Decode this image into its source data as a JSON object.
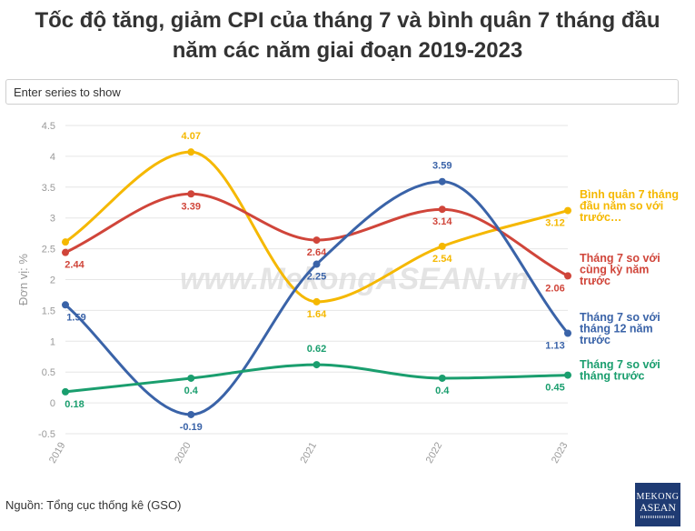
{
  "title_line1": "Tốc độ tăng, giảm CPI của tháng 7 và bình quân 7 tháng đầu",
  "title_line2": "năm các năm giai đoạn 2019-2023",
  "search": {
    "placeholder": "Enter series to show"
  },
  "source": "Nguồn: Tổng cục thống kê (GSO)",
  "watermark": "www.MekongASEAN.vn",
  "logo": {
    "line1": "MEKONG",
    "line2": "ASEAN"
  },
  "chart_data": {
    "type": "line",
    "x": [
      "2019",
      "2020",
      "2021",
      "2022",
      "2023"
    ],
    "ylabel": "Đơn vị: %",
    "ylim": [
      -0.5,
      4.5
    ],
    "yticks": [
      "-0.5",
      "0",
      "0.5",
      "1",
      "1.5",
      "2",
      "2.5",
      "3",
      "3.5",
      "4",
      "4.5"
    ],
    "grid": true,
    "series": [
      {
        "name": "Bình quân 7 tháng đầu năm so với trước...",
        "color": "#f5b800",
        "values": [
          2.61,
          4.07,
          1.64,
          2.54,
          3.12
        ],
        "labels": [
          "",
          "4.07",
          "1.64",
          "2.54",
          "3.12"
        ],
        "legend_lines": [
          "Bình quân 7 tháng",
          "đầu năm so với",
          "trước…"
        ]
      },
      {
        "name": "Tháng 7 so với cùng kỳ năm trước",
        "color": "#d0453a",
        "values": [
          2.44,
          3.39,
          2.64,
          3.14,
          2.06
        ],
        "labels": [
          "2.44",
          "3.39",
          "2.64",
          "3.14",
          "2.06"
        ],
        "legend_lines": [
          "Tháng 7 so với",
          "cùng kỳ năm",
          "trước"
        ]
      },
      {
        "name": "Tháng 7 so với tháng 12 năm trước",
        "color": "#3a63a8",
        "values": [
          1.59,
          -0.19,
          2.25,
          3.59,
          1.13
        ],
        "labels": [
          "1.59",
          "-0.19",
          "2.25",
          "3.59",
          "1.13"
        ],
        "legend_lines": [
          "Tháng 7 so với",
          "tháng 12 năm",
          "trước"
        ]
      },
      {
        "name": "Tháng 7 so với tháng trước",
        "color": "#1a9e6e",
        "values": [
          0.18,
          0.4,
          0.62,
          0.4,
          0.45
        ],
        "labels": [
          "0.18",
          "0.4",
          "0.62",
          "0.4",
          "0.45"
        ],
        "legend_lines": [
          "Tháng 7 so với",
          "tháng trước"
        ]
      }
    ]
  }
}
